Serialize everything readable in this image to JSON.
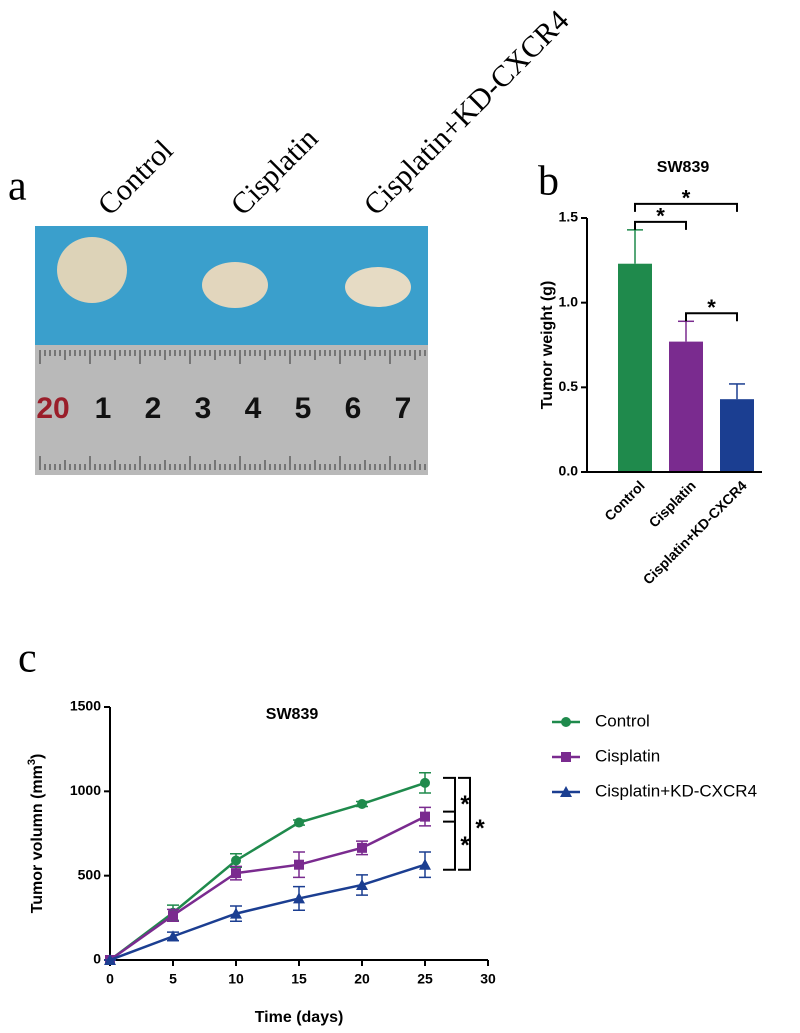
{
  "photo": {
    "panel_label": "a",
    "columns": [
      "Control",
      "Cisplatin",
      "Cisplatin+KD-CXCR4"
    ],
    "ruler_numbers": [
      "20",
      "1",
      "2",
      "3",
      "4",
      "5",
      "6",
      "7"
    ]
  },
  "chart_data": [
    {
      "type": "bar",
      "panel_label": "b",
      "title": "SW839",
      "y_label": "Tumor weight (g)",
      "categories": [
        "Control",
        "Cisplatin",
        "Cisplatin+KD-CXCR4"
      ],
      "values": [
        1.23,
        0.77,
        0.43
      ],
      "errors": [
        0.2,
        0.12,
        0.09
      ],
      "colors": [
        "#1f8a4c",
        "#7a2b8f",
        "#1b3e91"
      ],
      "ylim": [
        0,
        1.5
      ],
      "yticks": [
        {
          "value": 0,
          "label": "0.0"
        },
        0.5,
        {
          "value": 1,
          "label": "1.0"
        },
        1.5
      ],
      "significance": [
        {
          "pair": [
            "Control",
            "Cisplatin"
          ],
          "label": "*"
        },
        {
          "pair": [
            "Control",
            "Cisplatin+KD-CXCR4"
          ],
          "label": "*"
        },
        {
          "pair": [
            "Cisplatin",
            "Cisplatin+KD-CXCR4"
          ],
          "label": "*"
        }
      ]
    },
    {
      "type": "line",
      "panel_label": "c",
      "title": "SW839",
      "x_label": "Time (days)",
      "y_label": {
        "text": "Tumor volumn (mm",
        "superscript": "3",
        "end": ")"
      },
      "x": [
        0,
        5,
        10,
        15,
        20,
        25
      ],
      "series": [
        {
          "name": "Control",
          "color": "#1f8a4c",
          "marker": "circle",
          "values": [
            0,
            280,
            590,
            815,
            925,
            1050
          ],
          "errors": [
            0,
            45,
            40,
            15,
            15,
            60
          ]
        },
        {
          "name": "Cisplatin",
          "color": "#7a2b8f",
          "marker": "square",
          "values": [
            0,
            265,
            515,
            565,
            665,
            850
          ],
          "errors": [
            0,
            35,
            40,
            75,
            40,
            55
          ]
        },
        {
          "name": "Cisplatin+KD-CXCR4",
          "color": "#1b3e91",
          "marker": "triangle",
          "values": [
            0,
            140,
            275,
            365,
            445,
            565
          ],
          "errors": [
            0,
            25,
            45,
            70,
            60,
            75
          ]
        }
      ],
      "xlim": [
        0,
        30
      ],
      "xticks": [
        0,
        5,
        10,
        15,
        20,
        25,
        30
      ],
      "ylim": [
        0,
        1500
      ],
      "yticks": [
        0,
        500,
        1000,
        1500
      ],
      "legend": "right",
      "significance": [
        {
          "pair": [
            "Control",
            "Cisplatin"
          ],
          "label": "*"
        },
        {
          "pair": [
            "Cisplatin",
            "Cisplatin+KD-CXCR4"
          ],
          "label": "*"
        },
        {
          "pair": [
            "Control",
            "Cisplatin+KD-CXCR4"
          ],
          "label": "*"
        }
      ]
    }
  ]
}
